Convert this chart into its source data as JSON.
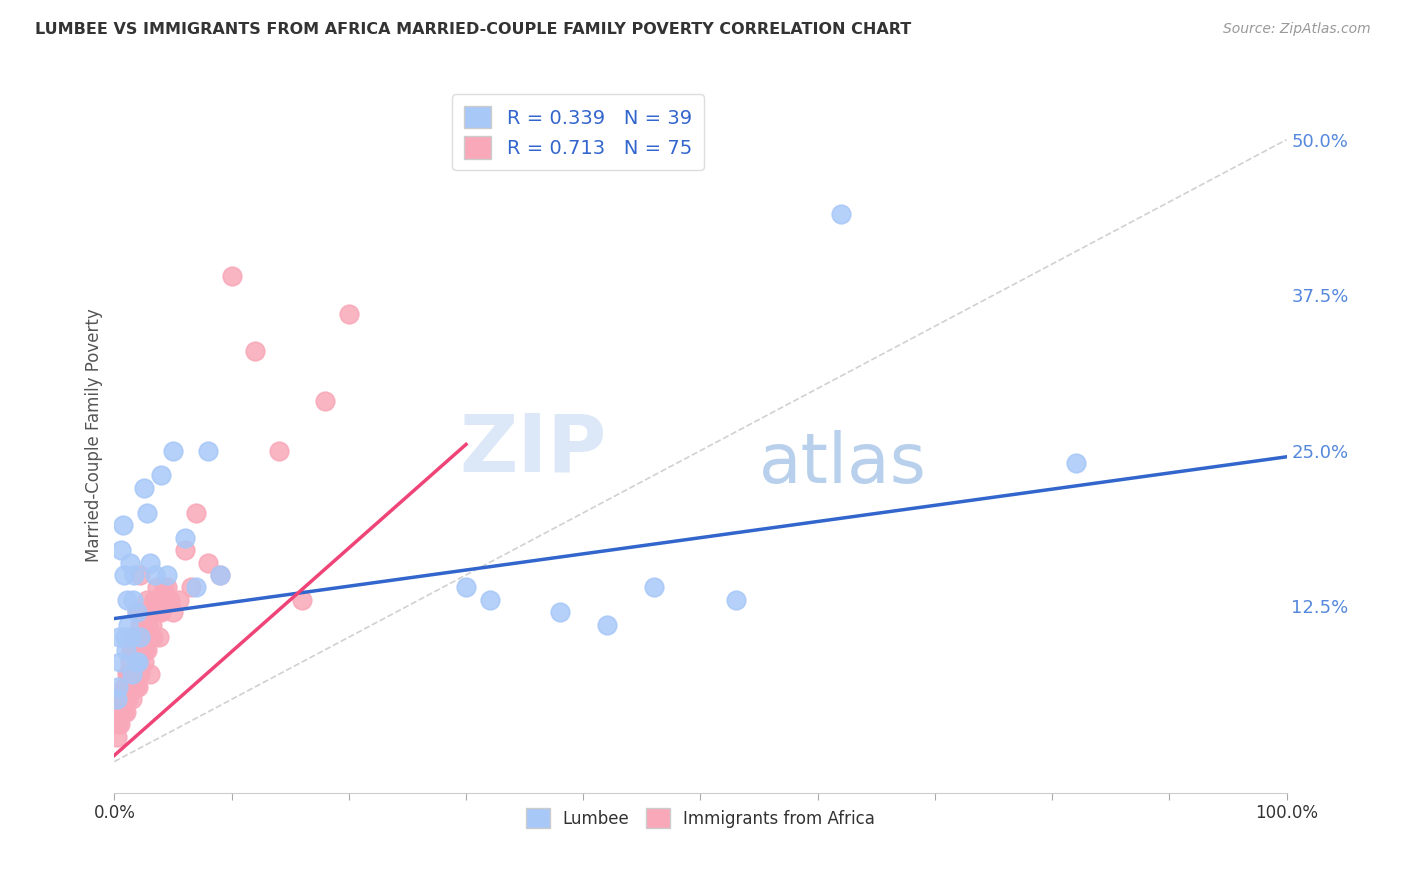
{
  "title": "LUMBEE VS IMMIGRANTS FROM AFRICA MARRIED-COUPLE FAMILY POVERTY CORRELATION CHART",
  "source": "Source: ZipAtlas.com",
  "ylabel": "Married-Couple Family Poverty",
  "yticks": [
    0.0,
    0.125,
    0.25,
    0.375,
    0.5
  ],
  "ytick_labels": [
    "",
    "12.5%",
    "25.0%",
    "37.5%",
    "50.0%"
  ],
  "xlim": [
    0.0,
    1.0
  ],
  "ylim": [
    -0.025,
    0.55
  ],
  "lumbee_R": "0.339",
  "lumbee_N": "39",
  "africa_R": "0.713",
  "africa_N": "75",
  "lumbee_color": "#a8c8f8",
  "africa_color": "#f8a8b8",
  "lumbee_line_color": "#3366cc",
  "africa_line_color": "#ee4477",
  "diagonal_color": "#cccccc",
  "lumbee_x": [
    0.002,
    0.003,
    0.004,
    0.005,
    0.006,
    0.007,
    0.008,
    0.009,
    0.01,
    0.011,
    0.012,
    0.013,
    0.014,
    0.015,
    0.016,
    0.017,
    0.018,
    0.019,
    0.02,
    0.022,
    0.025,
    0.028,
    0.03,
    0.035,
    0.04,
    0.045,
    0.05,
    0.06,
    0.07,
    0.08,
    0.09,
    0.3,
    0.32,
    0.38,
    0.42,
    0.46,
    0.53,
    0.62,
    0.82
  ],
  "lumbee_y": [
    0.05,
    0.06,
    0.1,
    0.08,
    0.17,
    0.19,
    0.15,
    0.1,
    0.09,
    0.13,
    0.11,
    0.16,
    0.1,
    0.07,
    0.13,
    0.15,
    0.08,
    0.12,
    0.08,
    0.1,
    0.22,
    0.2,
    0.16,
    0.15,
    0.23,
    0.15,
    0.25,
    0.18,
    0.14,
    0.25,
    0.15,
    0.14,
    0.13,
    0.12,
    0.11,
    0.14,
    0.13,
    0.44,
    0.24
  ],
  "africa_x": [
    0.002,
    0.003,
    0.004,
    0.005,
    0.005,
    0.006,
    0.007,
    0.008,
    0.008,
    0.009,
    0.01,
    0.01,
    0.011,
    0.011,
    0.012,
    0.012,
    0.013,
    0.013,
    0.013,
    0.014,
    0.014,
    0.015,
    0.015,
    0.015,
    0.016,
    0.016,
    0.017,
    0.017,
    0.018,
    0.018,
    0.019,
    0.019,
    0.02,
    0.02,
    0.02,
    0.021,
    0.022,
    0.022,
    0.022,
    0.023,
    0.024,
    0.025,
    0.025,
    0.026,
    0.027,
    0.028,
    0.028,
    0.029,
    0.03,
    0.031,
    0.032,
    0.033,
    0.034,
    0.035,
    0.036,
    0.037,
    0.038,
    0.04,
    0.042,
    0.043,
    0.045,
    0.047,
    0.05,
    0.055,
    0.06,
    0.065,
    0.07,
    0.08,
    0.09,
    0.1,
    0.12,
    0.14,
    0.16,
    0.18,
    0.2
  ],
  "africa_y": [
    0.02,
    0.03,
    0.04,
    0.03,
    0.05,
    0.04,
    0.05,
    0.04,
    0.06,
    0.05,
    0.04,
    0.06,
    0.05,
    0.07,
    0.05,
    0.07,
    0.06,
    0.08,
    0.07,
    0.06,
    0.09,
    0.05,
    0.07,
    0.09,
    0.06,
    0.09,
    0.07,
    0.1,
    0.06,
    0.1,
    0.08,
    0.12,
    0.06,
    0.09,
    0.12,
    0.08,
    0.07,
    0.11,
    0.15,
    0.1,
    0.09,
    0.08,
    0.12,
    0.09,
    0.1,
    0.09,
    0.13,
    0.11,
    0.07,
    0.12,
    0.11,
    0.1,
    0.13,
    0.13,
    0.14,
    0.12,
    0.1,
    0.12,
    0.14,
    0.13,
    0.14,
    0.13,
    0.12,
    0.13,
    0.17,
    0.14,
    0.2,
    0.16,
    0.15,
    0.39,
    0.33,
    0.25,
    0.13,
    0.29,
    0.36
  ],
  "lumbee_line_x": [
    0.0,
    1.0
  ],
  "lumbee_line_y": [
    0.115,
    0.245
  ],
  "africa_line_x": [
    0.0,
    0.3
  ],
  "africa_line_y": [
    0.005,
    0.255
  ],
  "watermark_zip": "ZIP",
  "watermark_atlas": "atlas",
  "background_color": "#ffffff",
  "grid_color": "#e0e0e0",
  "title_color": "#333333",
  "source_color": "#999999",
  "ylabel_color": "#555555",
  "legend_text_color": "#3366cc",
  "ytick_color": "#5588dd",
  "xtick_color_left": "#333333",
  "xtick_color_right": "#5588dd"
}
